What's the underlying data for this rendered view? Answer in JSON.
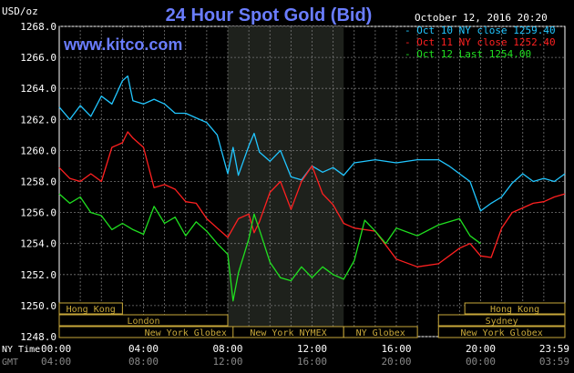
{
  "header": {
    "title": "24 Hour Spot Gold (Bid)",
    "units": "USD/oz",
    "timestamp": "October 12, 2016 20:20",
    "brand": "www.kitco.com"
  },
  "legend": [
    {
      "label": "Oct 10 NY close 1259.40",
      "color": "#21c6ff"
    },
    {
      "label": "Oct 11 NY close 1252.40",
      "color": "#ff2020"
    },
    {
      "label": "Oct 12 Last 1254.00",
      "color": "#20e020"
    }
  ],
  "axis_labels": {
    "ny_time": "NY Time",
    "gmt": "GMT"
  },
  "sessions": [
    {
      "label": "Hong Kong",
      "start": 0,
      "end": 3
    },
    {
      "label": "London",
      "start": 0,
      "end": 8
    },
    {
      "label": "New York Globex",
      "start": 0,
      "end": 12
    },
    {
      "label": "New York NYMEX",
      "start": 8.25,
      "end": 13.5
    },
    {
      "label": "NY Globex",
      "start": 13.5,
      "end": 17
    },
    {
      "label": "Hong Kong",
      "start": 19.25,
      "end": 24
    },
    {
      "label": "Sydney",
      "start": 18,
      "end": 24
    },
    {
      "label": "New York Globex",
      "start": 18,
      "end": 24
    }
  ],
  "chart_data": {
    "type": "line",
    "title": "24 Hour Spot Gold (Bid)",
    "ylabel": "USD/oz",
    "ylim": [
      1248,
      1268
    ],
    "yticks": [
      "1268.0",
      "1266.0",
      "1264.0",
      "1262.0",
      "1260.0",
      "1258.0",
      "1256.0",
      "1254.0",
      "1252.0",
      "1250.0",
      "1248.0"
    ],
    "xlim": [
      0,
      24
    ],
    "xticks_ny": [
      "00:00",
      "04:00",
      "08:00",
      "12:00",
      "16:00",
      "20:00",
      "23:59"
    ],
    "xticks_gmt": [
      "04:00",
      "08:00",
      "12:00",
      "16:00",
      "20:00",
      "00:00",
      "03:59"
    ],
    "grid": true,
    "shaded_region": [
      8,
      13.5
    ],
    "series": [
      {
        "name": "Oct 10 NY close 1259.40",
        "color": "#21c6ff",
        "x": [
          0,
          0.5,
          1,
          1.5,
          2,
          2.5,
          3,
          3.25,
          3.5,
          4,
          4.5,
          5,
          5.5,
          6,
          6.5,
          7,
          7.5,
          8,
          8.25,
          8.5,
          9,
          9.25,
          9.5,
          10,
          10.5,
          11,
          11.5,
          12,
          12.5,
          13,
          13.5,
          14,
          15,
          16,
          17,
          18,
          18.5,
          19,
          19.5,
          20,
          20.5,
          21,
          21.5,
          22,
          22.5,
          23,
          23.5,
          24
        ],
        "y": [
          1262.8,
          1262.0,
          1262.9,
          1262.2,
          1263.5,
          1263.0,
          1264.5,
          1264.8,
          1263.2,
          1263.0,
          1263.3,
          1263.0,
          1262.4,
          1262.4,
          1262.1,
          1261.8,
          1261.0,
          1258.5,
          1260.2,
          1258.4,
          1260.3,
          1261.1,
          1259.9,
          1259.3,
          1260.0,
          1258.3,
          1258.1,
          1259.0,
          1258.6,
          1258.9,
          1258.4,
          1259.2,
          1259.4,
          1259.2,
          1259.4,
          1259.4,
          1259.0,
          1258.5,
          1258.0,
          1256.1,
          1256.6,
          1257.0,
          1257.9,
          1258.5,
          1258.0,
          1258.2,
          1258.0,
          1258.5
        ]
      },
      {
        "name": "Oct 11 NY close 1252.40",
        "color": "#ff2020",
        "x": [
          0,
          0.5,
          1,
          1.5,
          2,
          2.5,
          3,
          3.25,
          3.5,
          4,
          4.5,
          5,
          5.5,
          6,
          6.5,
          7,
          7.5,
          8,
          8.25,
          8.5,
          9,
          9.25,
          9.5,
          10,
          10.5,
          11,
          11.5,
          12,
          12.5,
          13,
          13.5,
          14,
          15,
          16,
          17,
          18,
          19,
          19.5,
          20,
          20.5,
          21,
          21.5,
          22,
          22.5,
          23,
          23.5,
          24
        ],
        "y": [
          1258.9,
          1258.2,
          1258.0,
          1258.5,
          1258.0,
          1260.2,
          1260.5,
          1261.2,
          1260.8,
          1260.2,
          1257.6,
          1257.8,
          1257.5,
          1256.7,
          1256.6,
          1255.6,
          1255.0,
          1254.4,
          1255.0,
          1255.6,
          1255.9,
          1254.7,
          1255.4,
          1257.3,
          1258.0,
          1256.2,
          1258.0,
          1259.0,
          1257.2,
          1256.5,
          1255.3,
          1255.0,
          1254.8,
          1253.0,
          1252.5,
          1252.7,
          1253.7,
          1254.0,
          1253.2,
          1253.1,
          1255.0,
          1256.0,
          1256.3,
          1256.6,
          1256.7,
          1257.0,
          1257.2
        ]
      },
      {
        "name": "Oct 12 Last 1254.00",
        "color": "#20e020",
        "x": [
          0,
          0.5,
          1,
          1.5,
          2,
          2.5,
          3,
          3.5,
          4,
          4.5,
          5,
          5.5,
          6,
          6.5,
          7,
          7.5,
          8,
          8.25,
          8.5,
          9,
          9.25,
          9.5,
          10,
          10.5,
          11,
          11.5,
          12,
          12.5,
          13,
          13.5,
          14,
          14.5,
          15,
          15.5,
          16,
          17,
          18,
          19,
          19.5,
          20
        ],
        "y": [
          1257.2,
          1256.6,
          1257.0,
          1256.0,
          1255.8,
          1254.9,
          1255.3,
          1254.9,
          1254.6,
          1256.4,
          1255.3,
          1255.7,
          1254.5,
          1255.4,
          1254.8,
          1254.0,
          1253.3,
          1250.3,
          1252.1,
          1254.3,
          1255.9,
          1254.9,
          1252.8,
          1251.8,
          1251.6,
          1252.5,
          1251.8,
          1252.5,
          1252.0,
          1251.7,
          1252.9,
          1255.5,
          1254.8,
          1254.0,
          1255.0,
          1254.5,
          1255.2,
          1255.6,
          1254.5,
          1254.0
        ]
      }
    ]
  }
}
